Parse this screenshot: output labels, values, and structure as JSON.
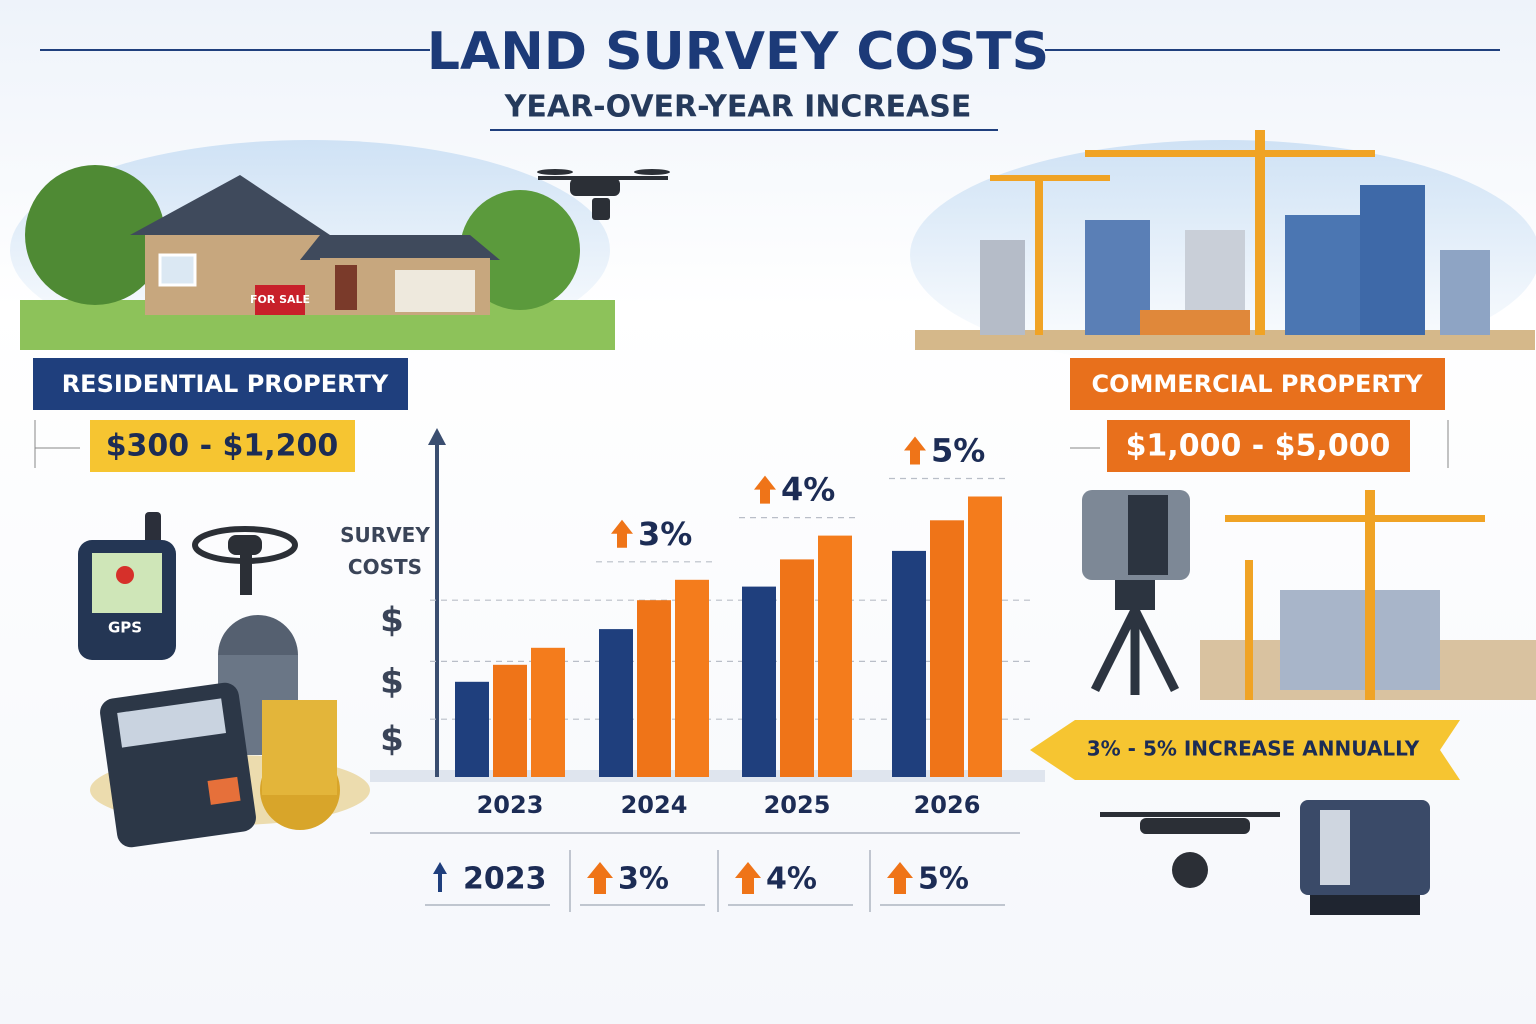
{
  "header": {
    "title": "LAND SURVEY COSTS",
    "subtitle": "YEAR-OVER-YEAR INCREASE"
  },
  "residential": {
    "label": "RESIDENTIAL PROPERTY",
    "range": "$300 - $1,200",
    "sign": "FOR SALE",
    "gps": "GPS"
  },
  "commercial": {
    "label": "COMMERCIAL PROPERTY",
    "range": "$1,000 - $5,000",
    "banner": "3% - 5% INCREASE ANNUALLY"
  },
  "chart_data": {
    "type": "bar",
    "y_label": "SURVEY COSTS",
    "categories": [
      "2023",
      "2024",
      "2025",
      "2026"
    ],
    "series": [
      {
        "color": "#1f3f7d",
        "values": [
          28,
          43.5,
          56,
          66.5
        ]
      },
      {
        "color": "#ef7418",
        "values": [
          33,
          52,
          64,
          75.5
        ]
      },
      {
        "color": "#f47c1c",
        "values": [
          38,
          58,
          71,
          82.5
        ]
      }
    ],
    "ylim": [
      0,
      100
    ],
    "yticks": [
      {
        "value": 17,
        "label": "$"
      },
      {
        "value": 34,
        "label": "$"
      },
      {
        "value": 52,
        "label": "$"
      }
    ],
    "grid": true,
    "annotations": [
      null,
      "3%",
      "4%",
      "5%"
    ]
  },
  "footer": {
    "items": [
      "2023",
      "3%",
      "4%",
      "5%"
    ]
  }
}
